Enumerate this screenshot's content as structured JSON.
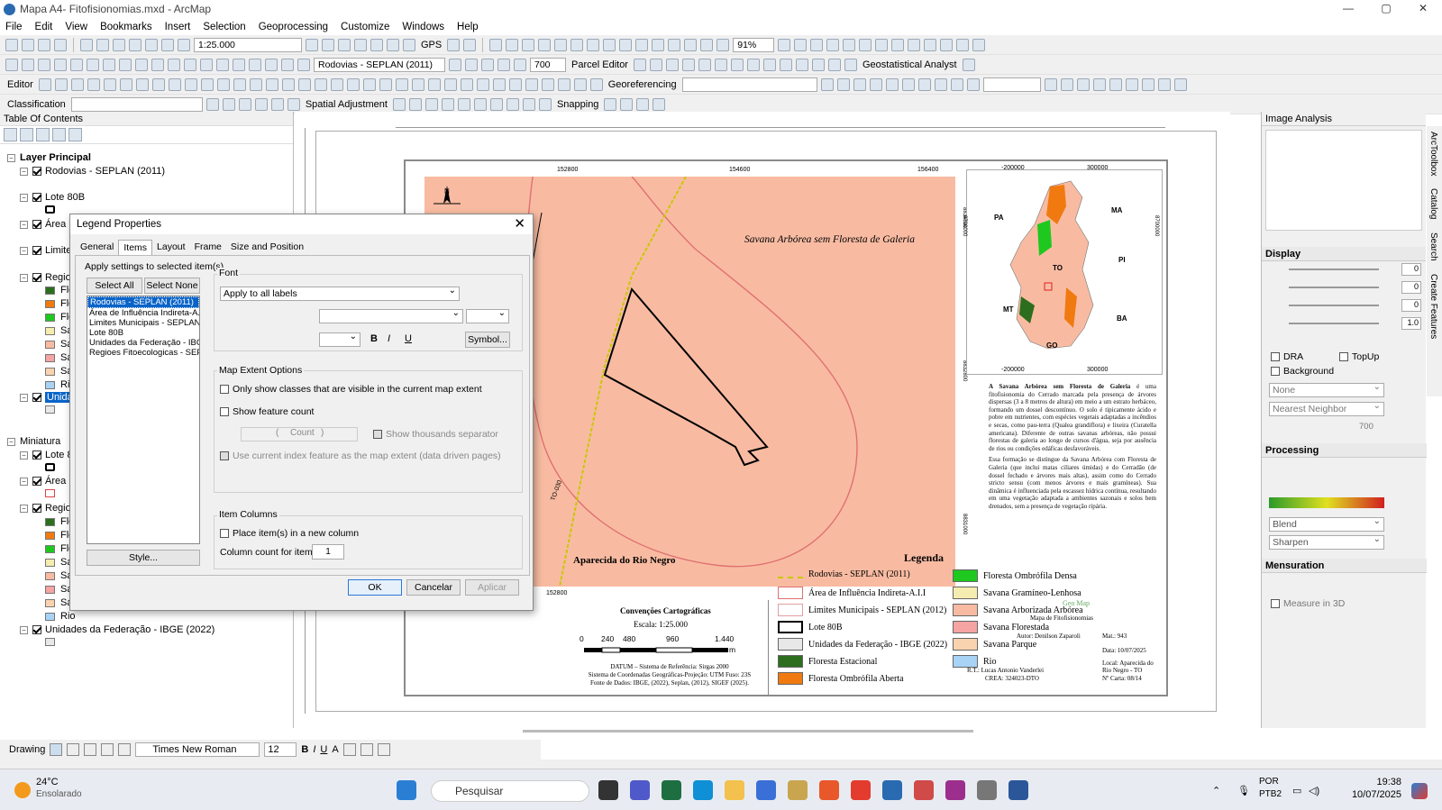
{
  "window": {
    "title": "Mapa A4- Fitofisionomias.mxd - ArcMap"
  },
  "menu": [
    "File",
    "Edit",
    "View",
    "Bookmarks",
    "Insert",
    "Selection",
    "Geoprocessing",
    "Customize",
    "Windows",
    "Help"
  ],
  "toolbar": {
    "scale": "1:25.000",
    "gps": "GPS",
    "zoom": "91%",
    "layer": "Rodovias - SEPLAN (2011)",
    "value700": "700",
    "parcel_editor": "Parcel Editor",
    "georeferencing": "Georeferencing",
    "geostat": "Geostatistical Analyst",
    "editor": "Editor",
    "classification": "Classification",
    "spatial_adjustment": "Spatial Adjustment",
    "snapping": "Snapping"
  },
  "toc": {
    "title": "Table Of Contents",
    "layer_principal": "Layer Principal",
    "rodovias": "Rodovias - SEPLAN (2011)",
    "lote": "Lote 80B",
    "area": "Área",
    "limites": "Limite",
    "regioes": "Regio",
    "flo1": "Flo",
    "flo2": "Flo",
    "flo3": "Flo",
    "sav1": "Sav",
    "sav2": "Sav",
    "sav3": "Sav",
    "sav4": "Sav",
    "rio": "Rio",
    "unidades": "Unida",
    "miniatura": "Miniatura",
    "lote2": "Lote 8",
    "area2": "Área",
    "regioes2": "Regio",
    "m_flo1": "Flo",
    "m_flo2": "Flo",
    "m_flo3": "Flo",
    "m_sav1": "Sav",
    "m_sav2": "Sav",
    "m_sav3": "Sav",
    "m_sav4": "Sav",
    "m_rio": "Rio",
    "uf": "Unidades da Federação - IBGE (2022)"
  },
  "dialog": {
    "title": "Legend Properties",
    "tabs": [
      "General",
      "Items",
      "Layout",
      "Frame",
      "Size and Position"
    ],
    "apply_label": "Apply settings to selected item(s)",
    "select_all": "Select All",
    "select_none": "Select None",
    "items": [
      "Rodovias - SEPLAN (2011)",
      "Área de Influência Indireta-A.",
      "Limites Municipais - SEPLAN (2",
      "Lote 80B",
      "Unidades da Federação - IBGE",
      "Regioes Fitoecologicas - SEPL"
    ],
    "style_btn": "Style...",
    "font_label": "Font",
    "font_apply": "Apply to all labels",
    "bold": "B",
    "italic": "I",
    "underline": "U",
    "symbol_btn": "Symbol...",
    "map_extent": "Map Extent Options",
    "only_visible": "Only show classes that are visible in the current map extent",
    "show_count": "Show feature count",
    "count_l": "(",
    "count": "Count",
    "count_r": ")",
    "thousands": "Show thousands separator",
    "use_index": "Use current index feature as the map extent (data driven pages)",
    "item_columns": "Item Columns",
    "place_new": "Place item(s) in a new column",
    "column_count": "Column count for item(s)",
    "column_value": "1",
    "ok": "OK",
    "cancel": "Cancelar",
    "apply": "Aplicar"
  },
  "map": {
    "north": "N",
    "label_savana": "Savana Arbórea sem Floresta de Galeria",
    "label_aparecida": "Aparecida do Rio Negro",
    "road_label": "TO-030",
    "coord_top": [
      "152800",
      "154600",
      "156400"
    ],
    "coord_bottom": "152800",
    "coord_left": [
      "8834600",
      "8832800",
      "8831000"
    ],
    "inset_top": [
      "-200000",
      "300000"
    ],
    "inset_bottom": [
      "-200000",
      "300000"
    ],
    "inset_left": "8700000",
    "inset_right": "8700000",
    "states": {
      "pa": "PA",
      "ma": "MA",
      "pi": "PI",
      "to": "TO",
      "mt": "MT",
      "ba": "BA",
      "go": "GO"
    }
  },
  "description": {
    "p1_bold": "A Savana Arbórea sem Floresta de Galeria",
    "p1": " é uma fitofisionomia do Cerrado marcada pela presença de árvores dispersas (3 a 8 metros de altura) em meio a um estrato herbáceo, formando um dossel descontínuo. O solo é tipicamente ácido e pobre em nutrientes, com espécies vegetais adaptadas a incêndios e secas, como pau-terra (Qualea grandiflora) e lixeira (Curatella americana). Diferente de outras savanas arbóreas, não possui florestas de galeria ao longo de cursos d'água, seja por ausência de rios ou condições edáficas desfavoráveis.",
    "p2": "Essa formação se distingue da Savana Arbórea com Floresta de Galeria (que inclui matas ciliares úmidas) e do Cerradão (de dossel fechado e árvores mais altas), assim como do Cerrado stricto sensu (com menos árvores e mais gramíneas). Sua dinâmica é influenciada pela escassez hídrica contínua, resultando em uma vegetação adaptada a ambientes sazonais e solos bem drenados, sem a presença de vegetação ripária."
  },
  "conventions": {
    "title": "Convenções Cartográficas",
    "scale": "Escala:  1:25.000",
    "ticks": [
      "0",
      "240",
      "480",
      "960",
      "1.440"
    ],
    "unit": "m",
    "datum": "DATUM – Sistema de Referência: Sirgas 2000",
    "proj": "Sistema de Coordenadas Geográficas-Projeção: UTM Fuso: 23S",
    "fonte": "Fonte de Dados: IBGE, (2022), Seplan, (2012), SIGEF (2025)."
  },
  "legend": {
    "title": "Legenda",
    "items": [
      {
        "label": "Rodovias - SEPLAN (2011)",
        "color": "#e5e54a"
      },
      {
        "label": "Área de Influência Indireta-A.I.I",
        "color": "#ffffff"
      },
      {
        "label": "Limites Municipais - SEPLAN (2012)",
        "color": "#ffffff"
      },
      {
        "label": "Lote 80B",
        "color": "#ffffff"
      },
      {
        "label": "Unidades da Federação - IBGE (2022)",
        "color": "#e8e8e8"
      },
      {
        "label": "Floresta Estacional",
        "color": "#2d6e1e"
      },
      {
        "label": "Floresta Ombrófila Aberta",
        "color": "#f07a10"
      }
    ],
    "items2": [
      {
        "label": "Floresta Ombrófila Densa",
        "color": "#1ec81e"
      },
      {
        "label": "Savana Gramíneo-Lenhosa",
        "color": "#f5ecb0"
      },
      {
        "label": "Savana Arborizada Arbórea",
        "color": "#f8bba2"
      },
      {
        "label": "Savana Florestada",
        "color": "#f5a3a3"
      },
      {
        "label": "Savana Parque",
        "color": "#f9d3b0"
      },
      {
        "label": "Rio",
        "color": "#a9d3f5"
      }
    ]
  },
  "carimbo": {
    "title": "Mapa de Fitofisionomias",
    "autor": "Autor: Denilson Zaparoli",
    "mat": "Mat.: 943",
    "data": "Data: 10/07/2025",
    "local": "Local: Aparecida do Rio Negro - TO",
    "rt": "R.T.: Lucas Antonio Vanderlei",
    "crea": "CREA: 324023-DTO",
    "carta": "Nº Carta: 08/14",
    "geo": "Geo Map"
  },
  "image_analysis": {
    "title": "Image Analysis",
    "display": "Display",
    "vals": [
      "0",
      "0",
      "0",
      "1.0"
    ],
    "dra": "DRA",
    "topup": "TopUp",
    "background": "Background",
    "none": "None",
    "nearest": "Nearest Neighbor",
    "val700": "700",
    "processing": "Processing",
    "blend": "Blend",
    "sharpen": "Sharpen",
    "mensuration": "Mensuration",
    "measure3d": "Measure in 3D"
  },
  "sidetabs": [
    "ArcToolbox",
    "Catalog",
    "Search",
    "Create Features"
  ],
  "drawing": {
    "label": "Drawing",
    "font": "Times New Roman",
    "size": "12"
  },
  "taskbar": {
    "temp": "24°C",
    "weather": "Ensolarado",
    "search": "Pesquisar",
    "lang": "POR",
    "layout": "PTB2",
    "time": "19:38",
    "date": "10/07/2025"
  },
  "colors": {
    "map_bg": "#f8bba2",
    "selection": "#0a64c8"
  }
}
